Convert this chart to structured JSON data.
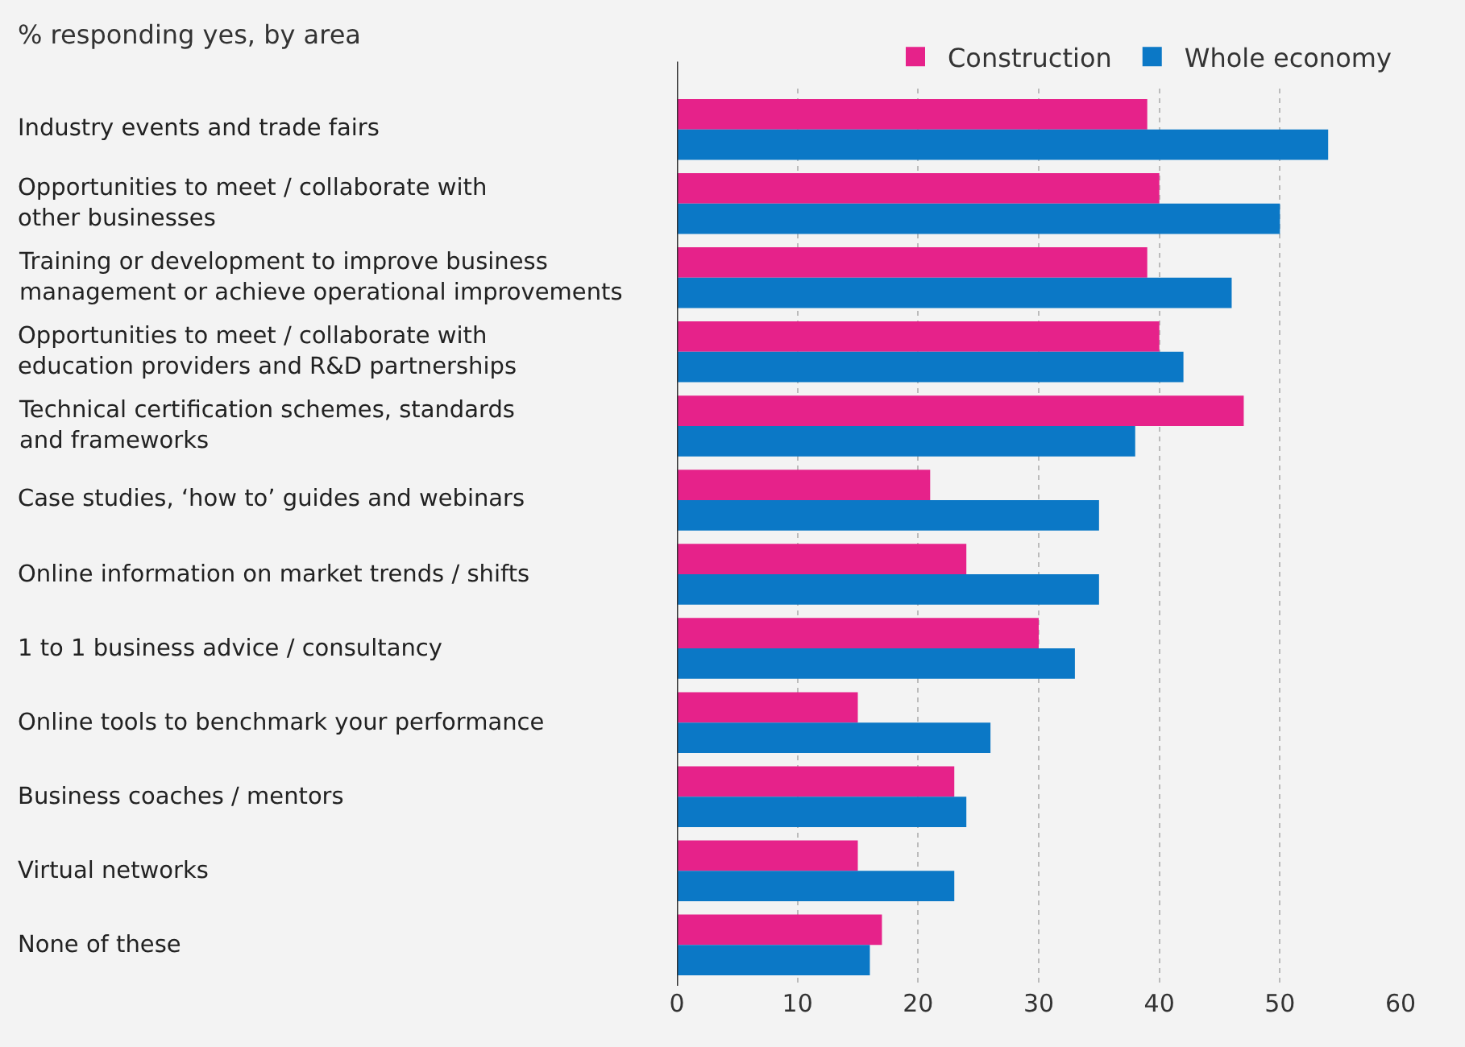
{
  "chart_data": {
    "type": "bar",
    "orientation": "horizontal",
    "title": "% responding yes, by area",
    "categories": [
      "Industry events and trade fairs",
      "Opportunities to meet / collaborate with\nother businesses",
      "Training or development to improve business\nmanagement or achieve operational improvements",
      "Opportunities to meet / collaborate with\neducation providers and R&D partnerships",
      "Technical certification schemes, standards\nand frameworks",
      "Case studies, ‘how to’ guides and webinars",
      "Online information on market trends / shifts",
      "1 to 1 business advice / consultancy",
      "Online tools to benchmark your performance",
      "Business coaches / mentors",
      "Virtual networks",
      "None of these"
    ],
    "series": [
      {
        "name": "Construction",
        "color": "#e6228a",
        "values": [
          39,
          40,
          39,
          40,
          47,
          21,
          24,
          30,
          15,
          23,
          15,
          17
        ]
      },
      {
        "name": "Whole economy",
        "color": "#0b78c6",
        "values": [
          54,
          50,
          46,
          42,
          38,
          35,
          35,
          33,
          26,
          24,
          23,
          16
        ]
      }
    ],
    "xlim": [
      0,
      60
    ],
    "xticks": [
      0,
      10,
      20,
      30,
      40,
      50,
      60
    ],
    "grid": "x",
    "legend": "top right"
  }
}
